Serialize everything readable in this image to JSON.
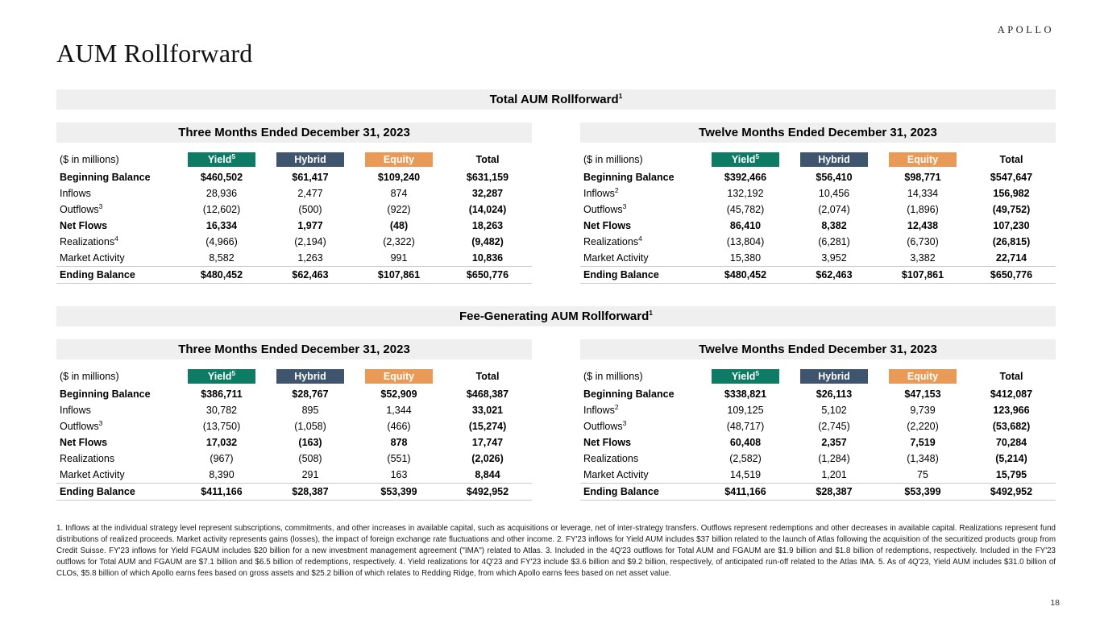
{
  "page": {
    "logo": "APOLLO",
    "title": "AUM Rollforward",
    "page_number": "18",
    "footnotes": "1. Inflows at the individual strategy level represent subscriptions, commitments, and other increases in available capital, such as acquisitions or leverage, net of inter-strategy transfers. Outflows represent redemptions and other decreases in available capital. Realizations represent fund distributions of realized proceeds. Market activity represents gains (losses), the impact of foreign exchange rate fluctuations and other income. 2. FY'23 inflows for Yield AUM includes $37 billion related to the launch of Atlas following the acquisition of the securitized products group from Credit Suisse. FY'23 inflows for Yield FGAUM includes $20 billion for a new investment management agreement (\"IMA\") related to Atlas. 3. Included in the 4Q'23 outflows for Total AUM and FGAUM are $1.9 billion and $1.8 billion of redemptions, respectively. Included in the FY'23 outflows for Total AUM and FGAUM are $7.1 billion and $6.5 billion of redemptions, respectively. 4. Yield realizations for 4Q'23 and FY'23 include $3.6 billion and $9.2 billion, respectively, of anticipated run-off related to the Atlas IMA. 5. As of 4Q'23, Yield AUM includes $31.0 billion of CLOs, $5.8 billion of which Apollo earns fees based on gross assets and $25.2 billion of which relates to Redding Ridge, from which Apollo earns fees based on net asset value."
  },
  "colors": {
    "yield": "#0E7C65",
    "hybrid": "#3F556E",
    "equity": "#EA9A57",
    "section_bar": "#EFEFEF"
  },
  "sections": [
    {
      "title": "Total AUM Rollforward",
      "title_sup": "1",
      "tables": [
        {
          "period": "Three Months Ended December 31, 2023",
          "unit_label": "($ in millions)",
          "columns": [
            {
              "key": "yield",
              "label": "Yield",
              "sup": "5"
            },
            {
              "key": "hybrid",
              "label": "Hybrid",
              "sup": ""
            },
            {
              "key": "equity",
              "label": "Equity",
              "sup": ""
            },
            {
              "key": "total",
              "label": "Total",
              "sup": ""
            }
          ],
          "rows": [
            {
              "label": "Beginning Balance",
              "sup": "",
              "bold": true,
              "topline": false,
              "values": [
                "$460,502",
                "$61,417",
                "$109,240",
                "$631,159"
              ]
            },
            {
              "label": "Inflows",
              "sup": "",
              "bold": false,
              "topline": false,
              "values": [
                "28,936",
                "2,477",
                "874",
                "32,287"
              ]
            },
            {
              "label": "Outflows",
              "sup": "3",
              "bold": false,
              "topline": false,
              "values": [
                "(12,602)",
                "(500)",
                "(922)",
                "(14,024)"
              ]
            },
            {
              "label": "Net Flows",
              "sup": "",
              "bold": true,
              "topline": false,
              "values": [
                "16,334",
                "1,977",
                "(48)",
                "18,263"
              ]
            },
            {
              "label": "Realizations",
              "sup": "4",
              "bold": false,
              "topline": false,
              "values": [
                "(4,966)",
                "(2,194)",
                "(2,322)",
                "(9,482)"
              ]
            },
            {
              "label": "Market Activity",
              "sup": "",
              "bold": false,
              "topline": false,
              "values": [
                "8,582",
                "1,263",
                "991",
                "10,836"
              ]
            },
            {
              "label": "Ending Balance",
              "sup": "",
              "bold": true,
              "topline": true,
              "values": [
                "$480,452",
                "$62,463",
                "$107,861",
                "$650,776"
              ]
            }
          ]
        },
        {
          "period": "Twelve Months Ended December 31, 2023",
          "unit_label": "($ in millions)",
          "columns": [
            {
              "key": "yield",
              "label": "Yield",
              "sup": "5"
            },
            {
              "key": "hybrid",
              "label": "Hybrid",
              "sup": ""
            },
            {
              "key": "equity",
              "label": "Equity",
              "sup": ""
            },
            {
              "key": "total",
              "label": "Total",
              "sup": ""
            }
          ],
          "rows": [
            {
              "label": "Beginning Balance",
              "sup": "",
              "bold": true,
              "topline": false,
              "values": [
                "$392,466",
                "$56,410",
                "$98,771",
                "$547,647"
              ]
            },
            {
              "label": "Inflows",
              "sup": "2",
              "bold": false,
              "topline": false,
              "values": [
                "132,192",
                "10,456",
                "14,334",
                "156,982"
              ]
            },
            {
              "label": "Outflows",
              "sup": "3",
              "bold": false,
              "topline": false,
              "values": [
                "(45,782)",
                "(2,074)",
                "(1,896)",
                "(49,752)"
              ]
            },
            {
              "label": "Net Flows",
              "sup": "",
              "bold": true,
              "topline": false,
              "values": [
                "86,410",
                "8,382",
                "12,438",
                "107,230"
              ]
            },
            {
              "label": "Realizations",
              "sup": "4",
              "bold": false,
              "topline": false,
              "values": [
                "(13,804)",
                "(6,281)",
                "(6,730)",
                "(26,815)"
              ]
            },
            {
              "label": "Market Activity",
              "sup": "",
              "bold": false,
              "topline": false,
              "values": [
                "15,380",
                "3,952",
                "3,382",
                "22,714"
              ]
            },
            {
              "label": "Ending Balance",
              "sup": "",
              "bold": true,
              "topline": true,
              "values": [
                "$480,452",
                "$62,463",
                "$107,861",
                "$650,776"
              ]
            }
          ]
        }
      ]
    },
    {
      "title": "Fee-Generating AUM Rollforward",
      "title_sup": "1",
      "tables": [
        {
          "period": "Three Months Ended December 31, 2023",
          "unit_label": "($ in millions)",
          "columns": [
            {
              "key": "yield",
              "label": "Yield",
              "sup": "5"
            },
            {
              "key": "hybrid",
              "label": "Hybrid",
              "sup": ""
            },
            {
              "key": "equity",
              "label": "Equity",
              "sup": ""
            },
            {
              "key": "total",
              "label": "Total",
              "sup": ""
            }
          ],
          "rows": [
            {
              "label": "Beginning Balance",
              "sup": "",
              "bold": true,
              "topline": false,
              "values": [
                "$386,711",
                "$28,767",
                "$52,909",
                "$468,387"
              ]
            },
            {
              "label": "Inflows",
              "sup": "",
              "bold": false,
              "topline": false,
              "values": [
                "30,782",
                "895",
                "1,344",
                "33,021"
              ]
            },
            {
              "label": "Outflows",
              "sup": "3",
              "bold": false,
              "topline": false,
              "values": [
                "(13,750)",
                "(1,058)",
                "(466)",
                "(15,274)"
              ]
            },
            {
              "label": "Net Flows",
              "sup": "",
              "bold": true,
              "topline": false,
              "values": [
                "17,032",
                "(163)",
                "878",
                "17,747"
              ]
            },
            {
              "label": "Realizations",
              "sup": "",
              "bold": false,
              "topline": false,
              "values": [
                "(967)",
                "(508)",
                "(551)",
                "(2,026)"
              ]
            },
            {
              "label": "Market Activity",
              "sup": "",
              "bold": false,
              "topline": false,
              "values": [
                "8,390",
                "291",
                "163",
                "8,844"
              ]
            },
            {
              "label": "Ending Balance",
              "sup": "",
              "bold": true,
              "topline": true,
              "values": [
                "$411,166",
                "$28,387",
                "$53,399",
                "$492,952"
              ]
            }
          ]
        },
        {
          "period": "Twelve Months Ended December 31, 2023",
          "unit_label": "($ in millions)",
          "columns": [
            {
              "key": "yield",
              "label": "Yield",
              "sup": "5"
            },
            {
              "key": "hybrid",
              "label": "Hybrid",
              "sup": ""
            },
            {
              "key": "equity",
              "label": "Equity",
              "sup": ""
            },
            {
              "key": "total",
              "label": "Total",
              "sup": ""
            }
          ],
          "rows": [
            {
              "label": "Beginning Balance",
              "sup": "",
              "bold": true,
              "topline": false,
              "values": [
                "$338,821",
                "$26,113",
                "$47,153",
                "$412,087"
              ]
            },
            {
              "label": "Inflows",
              "sup": "2",
              "bold": false,
              "topline": false,
              "values": [
                "109,125",
                "5,102",
                "9,739",
                "123,966"
              ]
            },
            {
              "label": "Outflows",
              "sup": "3",
              "bold": false,
              "topline": false,
              "values": [
                "(48,717)",
                "(2,745)",
                "(2,220)",
                "(53,682)"
              ]
            },
            {
              "label": "Net Flows",
              "sup": "",
              "bold": true,
              "topline": false,
              "values": [
                "60,408",
                "2,357",
                "7,519",
                "70,284"
              ]
            },
            {
              "label": "Realizations",
              "sup": "",
              "bold": false,
              "topline": false,
              "values": [
                "(2,582)",
                "(1,284)",
                "(1,348)",
                "(5,214)"
              ]
            },
            {
              "label": "Market Activity",
              "sup": "",
              "bold": false,
              "topline": false,
              "values": [
                "14,519",
                "1,201",
                "75",
                "15,795"
              ]
            },
            {
              "label": "Ending Balance",
              "sup": "",
              "bold": true,
              "topline": true,
              "values": [
                "$411,166",
                "$28,387",
                "$53,399",
                "$492,952"
              ]
            }
          ]
        }
      ]
    }
  ]
}
